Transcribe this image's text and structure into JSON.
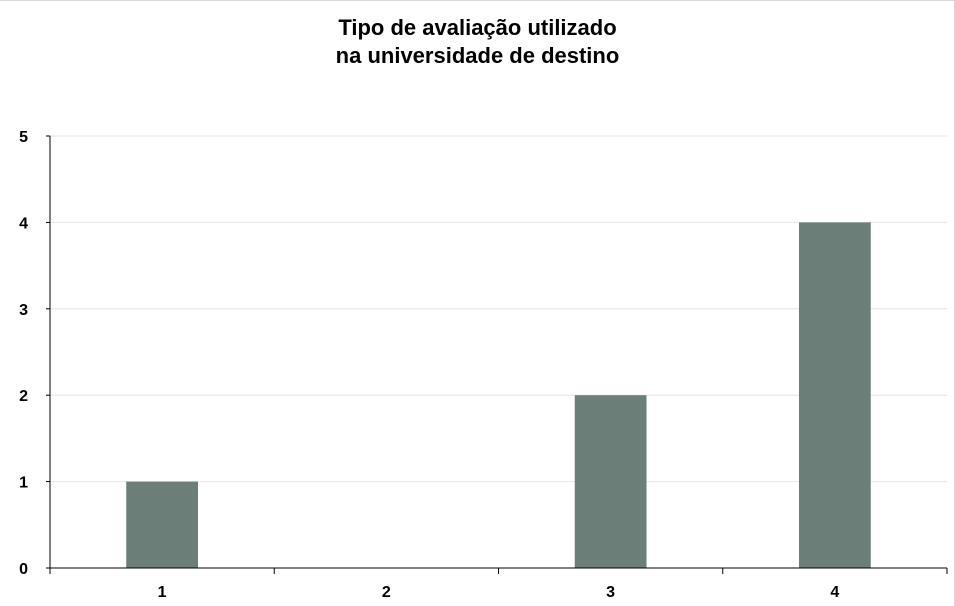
{
  "chart_data": {
    "type": "bar",
    "title": [
      "Tipo de avaliação utilizado",
      "na universidade de destino"
    ],
    "categories": [
      "1",
      "2",
      "3",
      "4"
    ],
    "values": [
      1,
      0,
      2,
      4
    ],
    "xlabel": "",
    "ylabel": "",
    "ylim": [
      0,
      5
    ],
    "yticks": [
      "0",
      "1",
      "2",
      "3",
      "4",
      "5"
    ],
    "grid": true,
    "legend": "none",
    "bar_color": "#6b7f78",
    "grid_color": "#e6e6e6",
    "axis_color": "#000000"
  }
}
